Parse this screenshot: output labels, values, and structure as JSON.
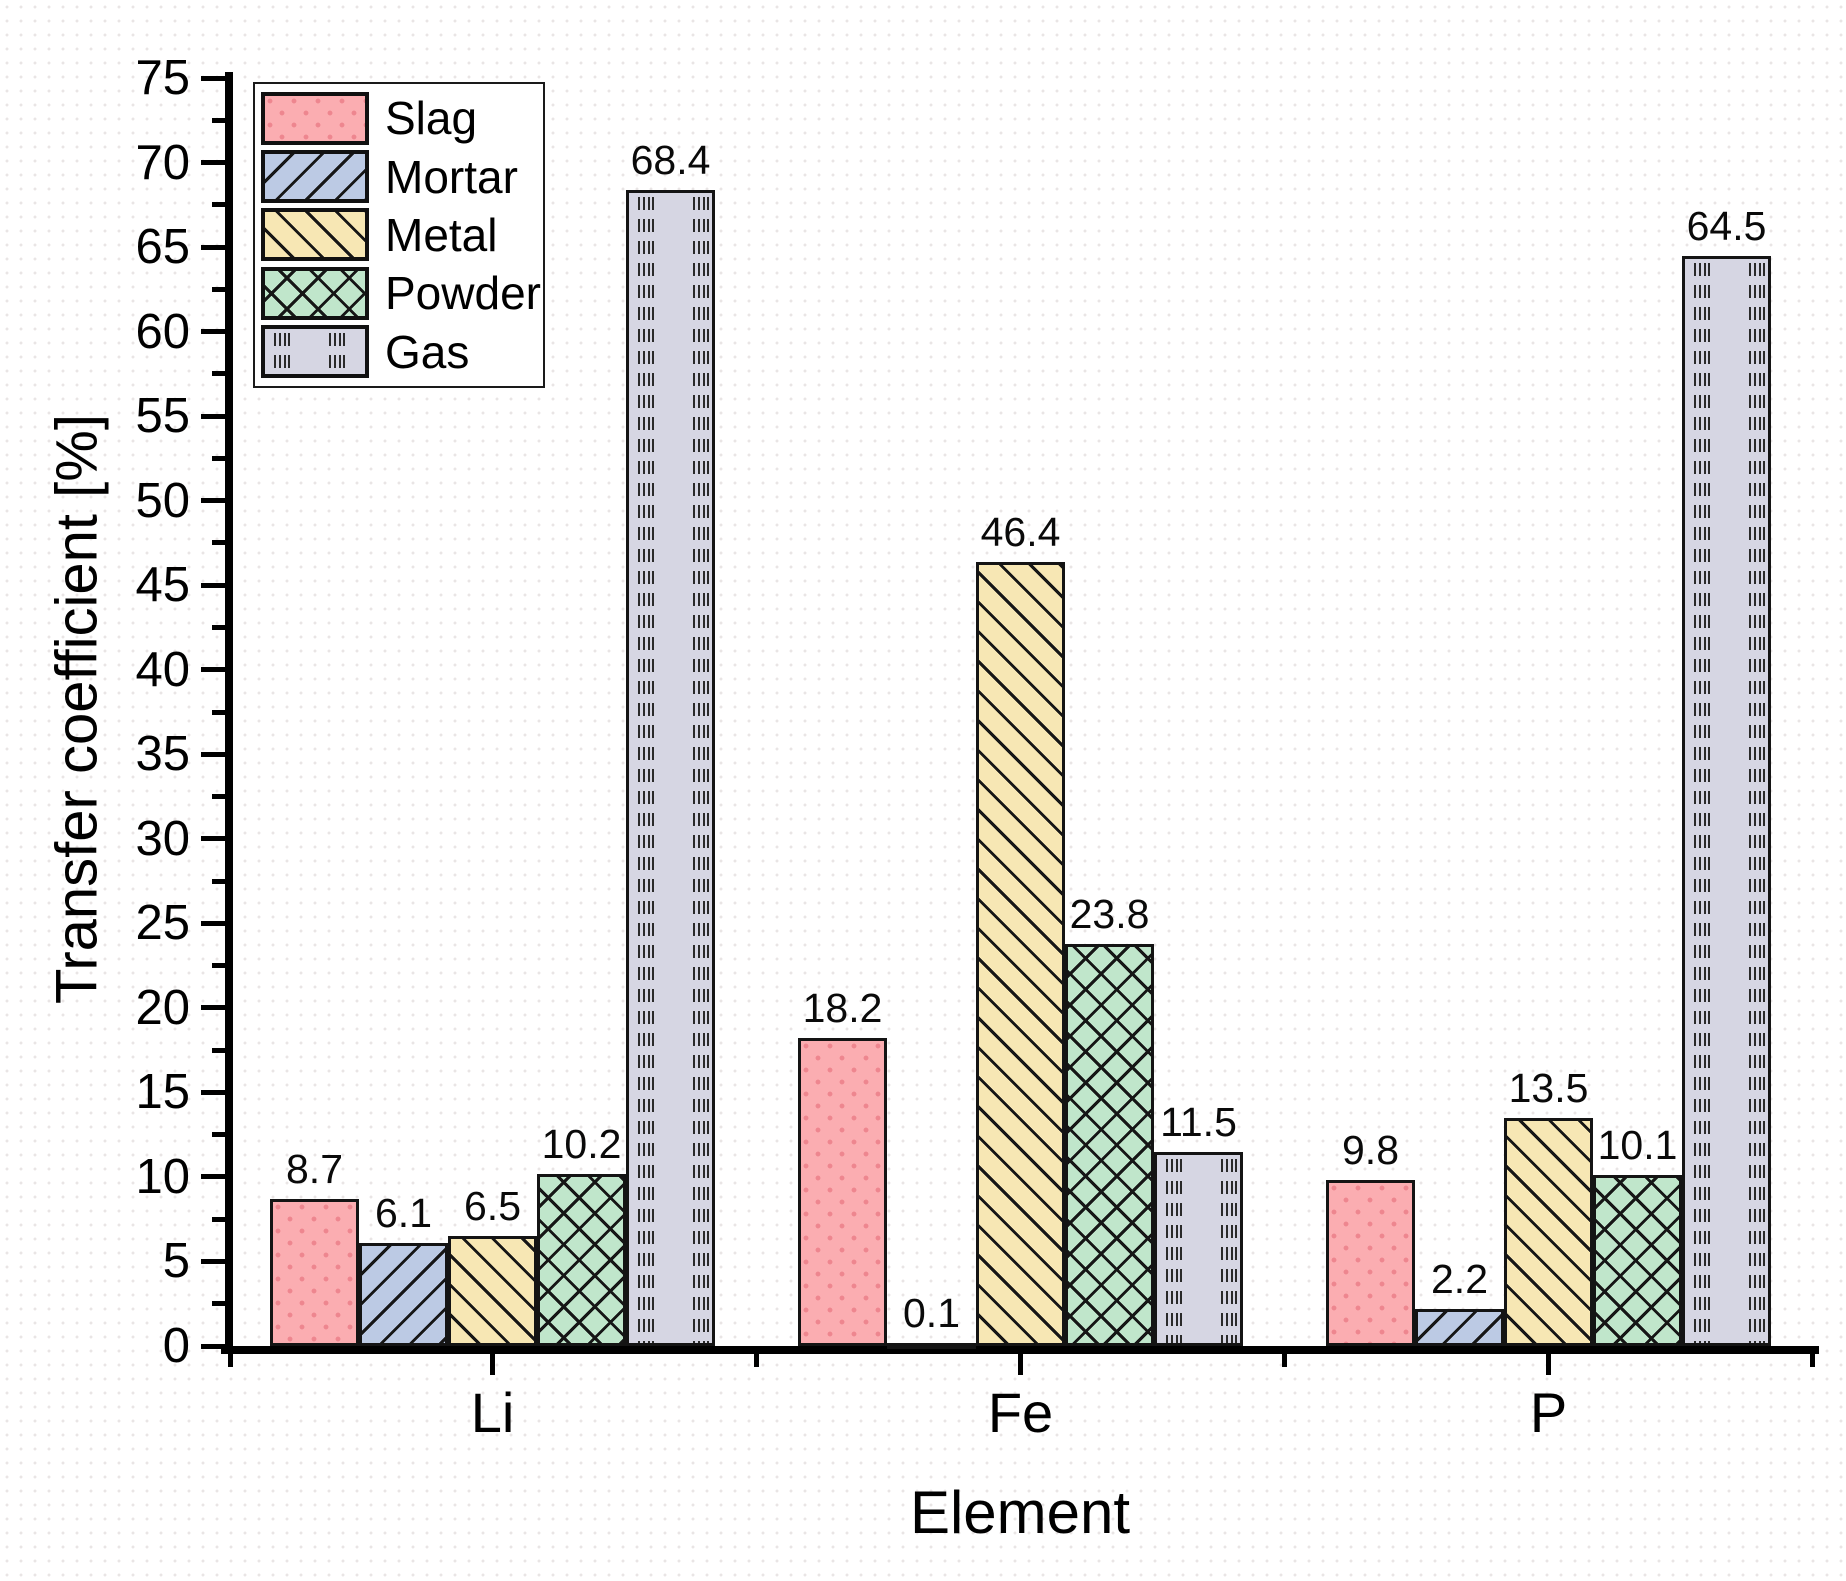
{
  "chart_data": {
    "type": "bar",
    "title": "",
    "xlabel": "Element",
    "ylabel": "Transfer coefficient [%]",
    "categories": [
      "Li",
      "Fe",
      "P"
    ],
    "series": [
      {
        "name": "Slag",
        "fill": "#FBADB1",
        "pattern": "dots",
        "values": [
          8.7,
          18.2,
          9.8
        ]
      },
      {
        "name": "Mortar",
        "fill": "#BCCAE4",
        "pattern": "slash",
        "values": [
          6.1,
          0.1,
          2.2
        ]
      },
      {
        "name": "Metal",
        "fill": "#F7E7B4",
        "pattern": "backslash",
        "values": [
          6.5,
          46.4,
          13.5
        ]
      },
      {
        "name": "Powder",
        "fill": "#C0E6CB",
        "pattern": "crosshatch",
        "values": [
          10.2,
          23.8,
          10.1
        ]
      },
      {
        "name": "Gas",
        "fill": "#D6D6E3",
        "pattern": "vertical-dashes",
        "values": [
          68.4,
          11.5,
          64.5
        ]
      }
    ],
    "value_labels": [
      "8.7",
      "6.1",
      "6.5",
      "10.2",
      "68.4",
      "18.2",
      "0.1",
      "46.4",
      "23.8",
      "11.5",
      "9.8",
      "2.2",
      "13.5",
      "10.1",
      "64.5"
    ],
    "ylim": [
      0,
      75
    ],
    "ytick_labels": [
      "0",
      "5",
      "10",
      "15",
      "20",
      "25",
      "30",
      "35",
      "40",
      "45",
      "50",
      "55",
      "60",
      "65",
      "70",
      "75"
    ],
    "ytick_step_major": 5,
    "ytick_step_minor": 2.5,
    "bar_value_labels": true,
    "legend_position": "top-left",
    "grid": false,
    "axis_color": "#000000",
    "background_dot_color": "#e9e5e5"
  }
}
